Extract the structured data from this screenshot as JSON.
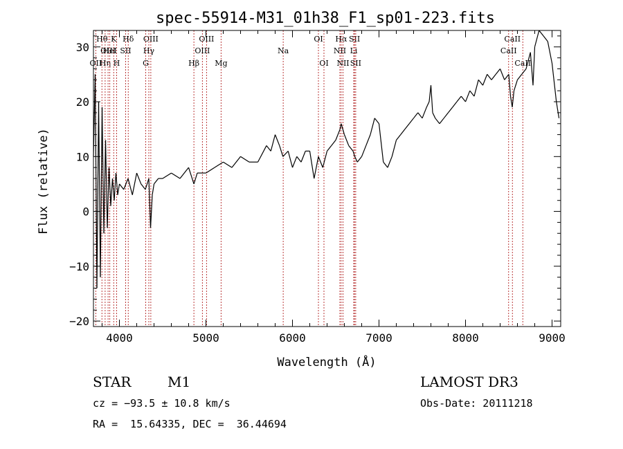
{
  "chart_data": {
    "type": "line",
    "title": "spec-55914-M31_01h38_F1_sp01-223.fits",
    "xlabel": "Wavelength (Å)",
    "ylabel": "Flux (relative)",
    "xlim": [
      3700,
      9100
    ],
    "ylim": [
      -21,
      33
    ],
    "x_ticks": [
      4000,
      5000,
      6000,
      7000,
      8000,
      9000
    ],
    "y_ticks": [
      -20,
      -10,
      0,
      10,
      20,
      30
    ],
    "x_tick_labels": [
      "4000",
      "5000",
      "6000",
      "7000",
      "8000",
      "9000"
    ],
    "y_tick_labels": [
      "−20",
      "−10",
      "0",
      "10",
      "20",
      "30"
    ],
    "series": [
      {
        "name": "flux",
        "x": [
          3700,
          3720,
          3740,
          3760,
          3780,
          3800,
          3820,
          3840,
          3860,
          3880,
          3900,
          3920,
          3940,
          3960,
          3980,
          4000,
          4050,
          4100,
          4150,
          4200,
          4250,
          4300,
          4340,
          4360,
          4380,
          4400,
          4450,
          4500,
          4600,
          4700,
          4800,
          4861,
          4900,
          5000,
          5100,
          5200,
          5300,
          5400,
          5500,
          5600,
          5700,
          5750,
          5800,
          5850,
          5890,
          5950,
          6000,
          6050,
          6100,
          6150,
          6200,
          6250,
          6300,
          6350,
          6400,
          6450,
          6500,
          6550,
          6563,
          6600,
          6650,
          6700,
          6720,
          6750,
          6800,
          6850,
          6900,
          6950,
          7000,
          7050,
          7100,
          7150,
          7200,
          7250,
          7300,
          7350,
          7400,
          7450,
          7500,
          7550,
          7580,
          7600,
          7620,
          7650,
          7700,
          7750,
          7800,
          7850,
          7900,
          7950,
          8000,
          8050,
          8100,
          8150,
          8200,
          8250,
          8300,
          8350,
          8400,
          8450,
          8500,
          8520,
          8540,
          8560,
          8600,
          8650,
          8700,
          8750,
          8780,
          8800,
          8850,
          8900,
          8950,
          9000,
          9050,
          9080
        ],
        "y": [
          10,
          25,
          -14,
          20,
          -12,
          19,
          -4,
          13,
          -3,
          8,
          1,
          6,
          2,
          7,
          3,
          5,
          4,
          6,
          3,
          7,
          5,
          4,
          6,
          -3,
          3,
          5,
          6,
          6,
          7,
          6,
          8,
          5,
          7,
          7,
          8,
          9,
          8,
          10,
          9,
          9,
          12,
          11,
          14,
          12,
          10,
          11,
          8,
          10,
          9,
          11,
          11,
          6,
          10,
          8,
          11,
          12,
          13,
          15,
          16,
          14,
          12,
          11,
          10,
          9,
          10,
          12,
          14,
          17,
          16,
          9,
          8,
          10,
          13,
          14,
          15,
          16,
          17,
          18,
          17,
          19,
          20,
          23,
          18,
          17,
          16,
          17,
          18,
          19,
          20,
          21,
          20,
          22,
          21,
          24,
          23,
          25,
          24,
          25,
          26,
          24,
          25,
          21,
          19,
          22,
          24,
          25,
          26,
          29,
          23,
          30,
          33,
          32,
          31,
          27,
          20,
          17
        ]
      }
    ],
    "lines": [
      {
        "name": "OII",
        "wl": 3727,
        "row": 2
      },
      {
        "name": "Hθ",
        "wl": 3798,
        "row": 0
      },
      {
        "name": "OIII",
        "wl": 3869,
        "row": 1
      },
      {
        "name": "Hη",
        "wl": 3835,
        "row": 2
      },
      {
        "name": "K",
        "wl": 3934,
        "row": 0
      },
      {
        "name": "HeI",
        "wl": 3889,
        "row": 1
      },
      {
        "name": "H",
        "wl": 3968,
        "row": 2
      },
      {
        "name": "Hδ",
        "wl": 4102,
        "row": 0
      },
      {
        "name": "SII",
        "wl": 4072,
        "row": 1
      },
      {
        "name": "OIII",
        "wl": 4363,
        "row": 0
      },
      {
        "name": "Hγ",
        "wl": 4340,
        "row": 1
      },
      {
        "name": "G",
        "wl": 4304,
        "row": 2
      },
      {
        "name": "Hβ",
        "wl": 4861,
        "row": 2
      },
      {
        "name": "OIII",
        "wl": 5007,
        "row": 0
      },
      {
        "name": "OIII",
        "wl": 4959,
        "row": 1
      },
      {
        "name": "Mg",
        "wl": 5175,
        "row": 2
      },
      {
        "name": "Na",
        "wl": 5893,
        "row": 1
      },
      {
        "name": "OI",
        "wl": 6300,
        "row": 0
      },
      {
        "name": "OI",
        "wl": 6364,
        "row": 2
      },
      {
        "name": "Hα",
        "wl": 6563,
        "row": 0
      },
      {
        "name": "NII",
        "wl": 6548,
        "row": 1
      },
      {
        "name": "NII",
        "wl": 6584,
        "row": 2
      },
      {
        "name": "SII",
        "wl": 6717,
        "row": 0
      },
      {
        "name": "Li",
        "wl": 6708,
        "row": 1
      },
      {
        "name": "SII",
        "wl": 6731,
        "row": 2
      },
      {
        "name": "CaII",
        "wl": 8542,
        "row": 0
      },
      {
        "name": "CaII",
        "wl": 8498,
        "row": 1
      },
      {
        "name": "CaII",
        "wl": 8662,
        "row": 2
      }
    ],
    "line_color": "#b22222"
  },
  "info": {
    "object_class": "STAR",
    "subclass": "M1",
    "survey": "LAMOST DR3",
    "cz": "cz = −93.5 ± 10.8 km/s",
    "obs_date": "Obs-Date: 20111218",
    "coords": "RA =  15.64335, DEC =  36.44694"
  }
}
